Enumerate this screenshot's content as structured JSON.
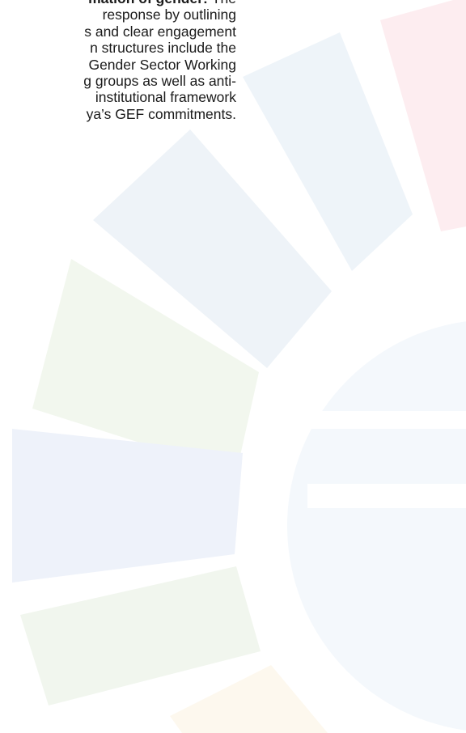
{
  "paragraph": {
    "lead": {
      "bold": "mation of gender:",
      "text": "The"
    },
    "lines": [
      "response by outlining",
      "s and clear engagement",
      "n structures include the",
      "Gender Sector Working",
      "g groups as well as anti-",
      "institutional framework",
      "ya’s GEF commitments."
    ]
  }
}
